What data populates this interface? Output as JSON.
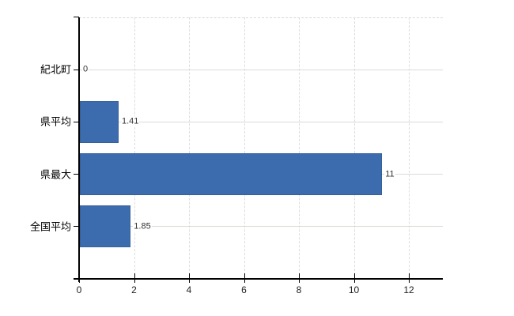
{
  "chart_data": {
    "type": "bar",
    "orientation": "horizontal",
    "title": "",
    "xlabel": "",
    "ylabel": "",
    "categories": [
      "紀北町",
      "県平均",
      "県最大",
      "全国平均"
    ],
    "values": [
      0,
      1.41,
      11,
      1.85
    ],
    "value_labels": [
      "0",
      "1.41",
      "11",
      "1.85"
    ],
    "xticks": [
      0,
      2,
      4,
      6,
      8,
      10,
      12
    ],
    "xtick_labels": [
      "0",
      "2",
      "4",
      "6",
      "8",
      "10",
      "12"
    ],
    "xlim": [
      0,
      13.24
    ],
    "grid": true,
    "legend": "none",
    "bar_color": "#3d6cae",
    "bar_border_color": "#34609c",
    "axis_color": "#000000",
    "hgrid_color": "#d8ddd4",
    "vgrid_color": "#dcdcdc",
    "top_border_color": "#d8d8d8",
    "text_color": "#222222",
    "value_label_color": "#333333",
    "background": "#ffffff"
  }
}
